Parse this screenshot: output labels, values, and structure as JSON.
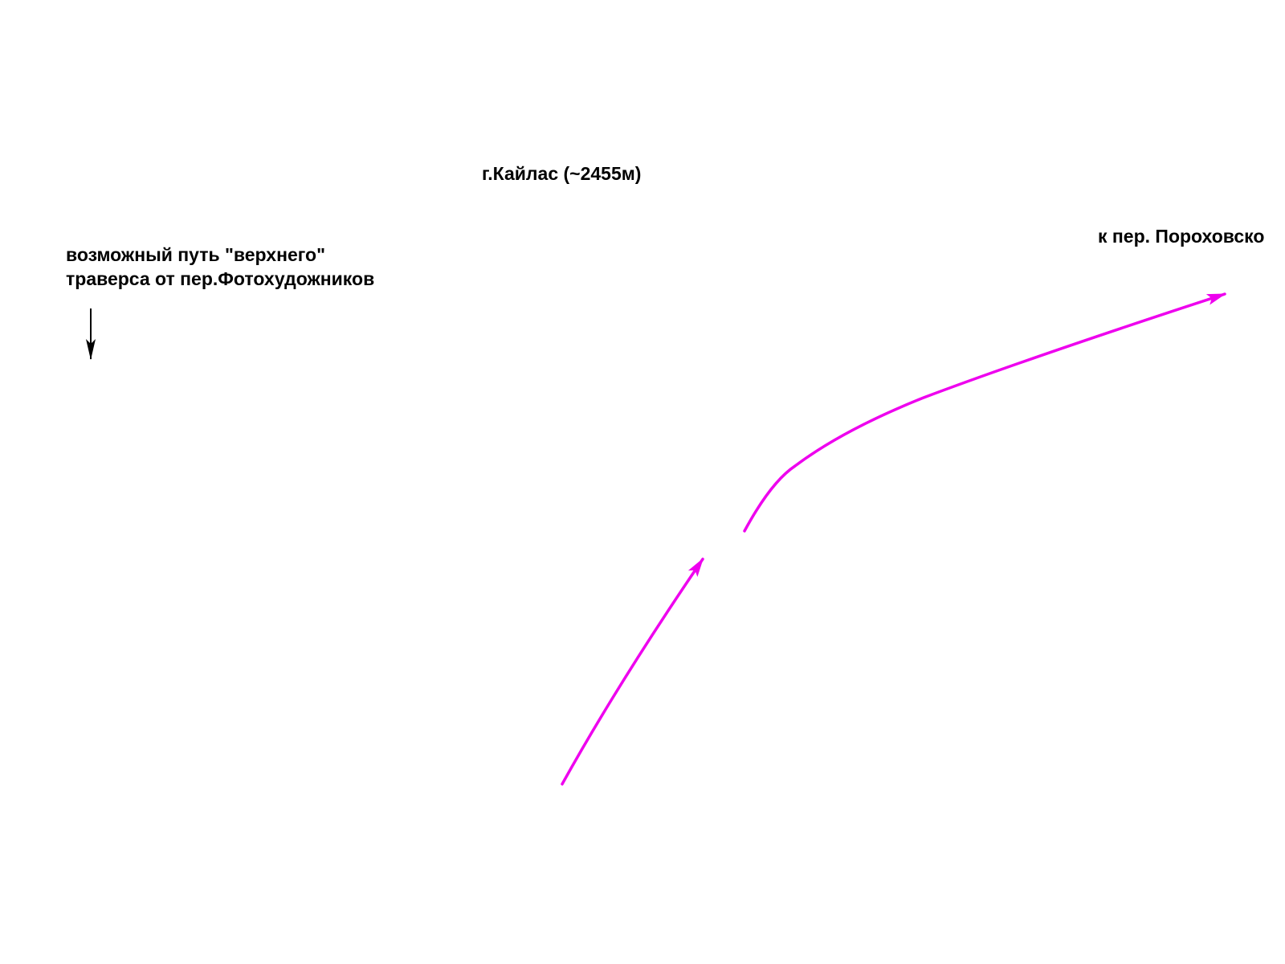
{
  "labels": {
    "peak": "г.Кайлас (~2455м)",
    "pass_direction": "к пер. Пороховско",
    "upper_traverse": {
      "line1": "возможный путь \"верхнего\"",
      "line2": "траверса от пер.Фотохудожников"
    }
  },
  "colors": {
    "route": "#ee00ee",
    "annotation_arrow": "#000000",
    "text": "#000000",
    "background": "#ffffff"
  }
}
